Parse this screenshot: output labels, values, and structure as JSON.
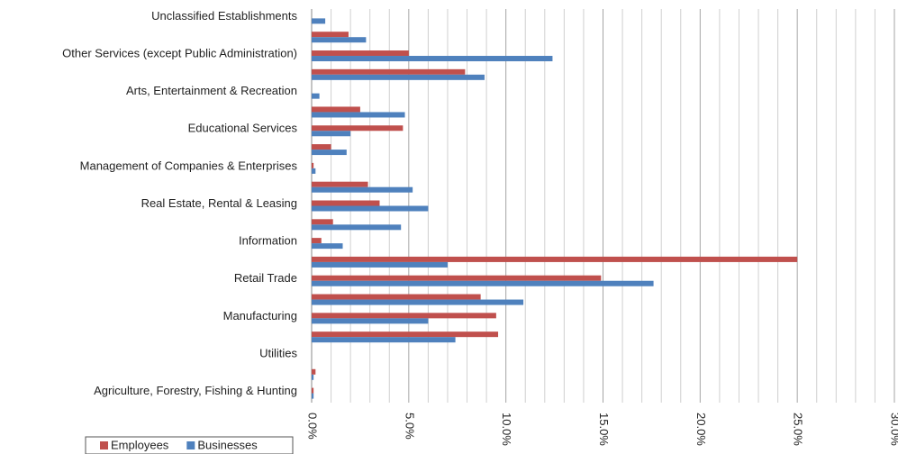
{
  "chart_data": {
    "type": "bar",
    "orientation": "horizontal",
    "categories": [
      "Unclassified Establishments",
      null,
      "Other Services (except Public Administration)",
      null,
      "Arts, Entertainment & Recreation",
      null,
      "Educational Services",
      null,
      "Management of Companies & Enterprises",
      null,
      "Real Estate, Rental & Leasing",
      null,
      "Information",
      null,
      "Retail Trade",
      null,
      "Manufacturing",
      null,
      "Utilities",
      null,
      "Agriculture, Forestry, Fishing & Hunting"
    ],
    "series": [
      {
        "name": "Employees",
        "color": "#c0504d",
        "values": [
          0,
          1.9,
          5.0,
          7.9,
          0,
          2.5,
          4.7,
          1.0,
          0.1,
          2.9,
          3.5,
          1.1,
          0.5,
          25.0,
          14.9,
          8.7,
          9.5,
          9.6,
          0,
          0.2,
          0.1
        ]
      },
      {
        "name": "Businesses",
        "color": "#4f81bd",
        "values": [
          0.7,
          2.8,
          12.4,
          8.9,
          0.4,
          4.8,
          2.0,
          1.8,
          0.2,
          5.2,
          6.0,
          4.6,
          1.6,
          7.0,
          17.6,
          10.9,
          6.0,
          7.4,
          0,
          0.1,
          0.1
        ]
      }
    ],
    "xlim": [
      0,
      30
    ],
    "xticks": [
      {
        "value": 0,
        "label": "0.0%"
      },
      {
        "value": 5,
        "label": "5.0%"
      },
      {
        "value": 10,
        "label": "10.0%"
      },
      {
        "value": 15,
        "label": "15.0%"
      },
      {
        "value": 20,
        "label": "20.0%"
      },
      {
        "value": 25,
        "label": "25.0%"
      },
      {
        "value": 30,
        "label": "30.0%"
      }
    ],
    "grid": true,
    "legend": "bottom-left"
  }
}
